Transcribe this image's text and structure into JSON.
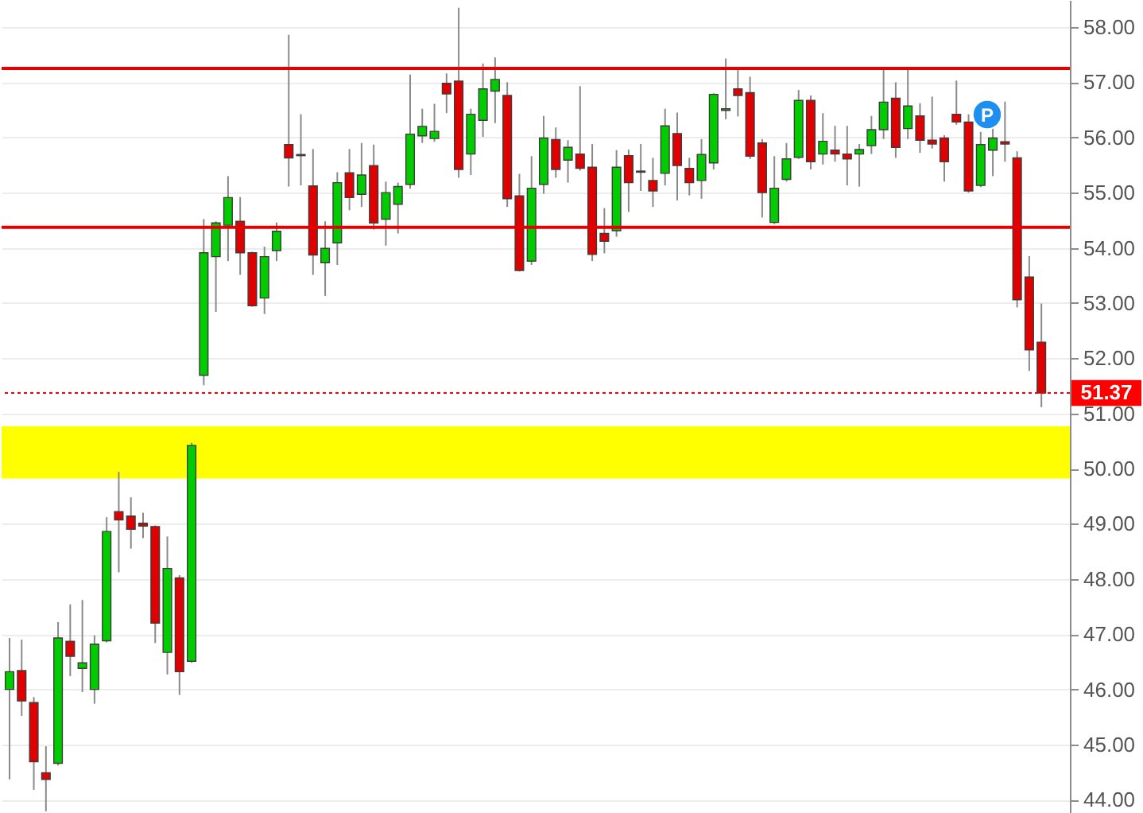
{
  "chart_data": {
    "type": "candlestick",
    "categories": [
      null,
      null,
      null,
      null,
      null,
      null,
      null,
      null,
      null,
      null,
      null,
      null,
      null,
      null,
      null,
      null,
      null,
      null,
      null,
      null,
      null,
      null,
      null,
      null,
      null,
      null,
      null,
      null,
      null,
      null,
      null,
      null,
      null,
      null,
      null,
      null,
      null,
      null,
      null,
      null,
      null,
      null,
      null,
      null,
      null,
      null,
      null,
      null,
      null,
      null,
      null,
      null,
      null,
      null,
      null,
      null,
      null,
      null,
      null,
      null,
      null,
      null,
      null,
      null,
      null,
      null,
      null,
      null,
      null,
      null,
      null,
      null,
      null,
      null,
      null,
      null,
      null,
      null,
      null,
      null,
      null,
      null,
      null,
      null,
      null,
      null
    ],
    "ohlc": [
      [
        46.0,
        46.93,
        44.37,
        46.32
      ],
      [
        46.34,
        46.9,
        45.52,
        45.79
      ],
      [
        45.76,
        45.86,
        44.18,
        44.69
      ],
      [
        44.49,
        44.97,
        43.79,
        44.37
      ],
      [
        44.66,
        47.22,
        44.62,
        46.93
      ],
      [
        46.87,
        47.54,
        46.24,
        46.6
      ],
      [
        46.38,
        47.62,
        45.95,
        46.48
      ],
      [
        46.0,
        46.98,
        45.74,
        46.82
      ],
      [
        46.88,
        49.12,
        46.85,
        48.86
      ],
      [
        49.22,
        49.94,
        48.12,
        49.07
      ],
      [
        49.14,
        49.48,
        48.55,
        48.9
      ],
      [
        49.01,
        49.2,
        48.74,
        48.96
      ],
      [
        48.95,
        48.97,
        46.84,
        47.2
      ],
      [
        46.67,
        48.77,
        46.27,
        48.19
      ],
      [
        48.02,
        48.07,
        45.9,
        46.32
      ],
      [
        46.51,
        50.47,
        46.48,
        50.42
      ],
      [
        51.69,
        54.52,
        51.51,
        53.91
      ],
      [
        53.84,
        54.48,
        52.84,
        54.45
      ],
      [
        54.41,
        55.3,
        53.76,
        54.91
      ],
      [
        54.48,
        54.92,
        53.51,
        53.91
      ],
      [
        53.91,
        53.93,
        52.93,
        52.95
      ],
      [
        53.09,
        54.02,
        52.8,
        53.84
      ],
      [
        53.95,
        54.46,
        53.76,
        54.3
      ],
      [
        55.87,
        57.86,
        55.11,
        55.63
      ],
      [
        55.67,
        56.42,
        55.13,
        55.69
      ],
      [
        55.12,
        55.79,
        53.51,
        53.87
      ],
      [
        53.73,
        54.48,
        53.13,
        53.99
      ],
      [
        54.09,
        55.37,
        53.69,
        55.18
      ],
      [
        55.36,
        55.79,
        54.68,
        54.91
      ],
      [
        54.97,
        55.9,
        54.74,
        55.32
      ],
      [
        55.49,
        55.87,
        54.33,
        54.45
      ],
      [
        54.52,
        55.2,
        54.04,
        55.0
      ],
      [
        54.79,
        55.18,
        54.26,
        55.11
      ],
      [
        55.15,
        57.14,
        55.07,
        56.06
      ],
      [
        56.03,
        56.52,
        55.9,
        56.2
      ],
      [
        55.98,
        56.61,
        55.92,
        56.11
      ],
      [
        56.98,
        57.16,
        56.44,
        56.79
      ],
      [
        57.02,
        58.35,
        55.27,
        55.42
      ],
      [
        55.7,
        56.52,
        55.32,
        56.42
      ],
      [
        56.31,
        57.34,
        56.01,
        56.88
      ],
      [
        56.84,
        57.45,
        56.26,
        57.05
      ],
      [
        56.76,
        57.0,
        54.74,
        54.89
      ],
      [
        54.94,
        55.34,
        53.57,
        53.59
      ],
      [
        53.76,
        55.66,
        53.69,
        55.08
      ],
      [
        55.15,
        56.39,
        54.98,
        55.99
      ],
      [
        55.96,
        56.18,
        55.27,
        55.42
      ],
      [
        55.59,
        55.95,
        55.18,
        55.82
      ],
      [
        55.7,
        56.93,
        55.4,
        55.44
      ],
      [
        55.46,
        55.88,
        53.76,
        53.88
      ],
      [
        54.26,
        54.72,
        53.9,
        54.12
      ],
      [
        54.31,
        55.77,
        54.2,
        55.46
      ],
      [
        55.67,
        55.78,
        54.65,
        55.18
      ],
      [
        55.37,
        55.88,
        55.03,
        55.39
      ],
      [
        55.22,
        55.63,
        54.74,
        55.03
      ],
      [
        55.35,
        56.52,
        55.13,
        56.21
      ],
      [
        56.07,
        56.45,
        54.86,
        55.49
      ],
      [
        55.44,
        55.63,
        54.95,
        55.18
      ],
      [
        55.22,
        55.97,
        54.89,
        55.69
      ],
      [
        55.54,
        56.8,
        55.42,
        56.78
      ],
      [
        56.49,
        57.43,
        56.33,
        56.52
      ],
      [
        56.88,
        57.26,
        56.38,
        56.76
      ],
      [
        56.81,
        57.1,
        55.61,
        55.66
      ],
      [
        55.9,
        55.97,
        54.55,
        55.0
      ],
      [
        54.46,
        55.66,
        54.43,
        55.08
      ],
      [
        55.24,
        55.9,
        55.2,
        55.61
      ],
      [
        55.64,
        56.86,
        55.61,
        56.67
      ],
      [
        56.67,
        56.76,
        55.42,
        55.56
      ],
      [
        55.7,
        56.44,
        55.51,
        55.93
      ],
      [
        55.77,
        56.21,
        55.56,
        55.7
      ],
      [
        55.7,
        56.21,
        55.13,
        55.61
      ],
      [
        55.7,
        55.88,
        55.11,
        55.78
      ],
      [
        55.85,
        56.39,
        55.7,
        56.14
      ],
      [
        56.14,
        57.24,
        55.97,
        56.64
      ],
      [
        56.71,
        57.0,
        55.63,
        55.82
      ],
      [
        56.16,
        57.24,
        55.97,
        56.57
      ],
      [
        56.39,
        56.62,
        55.72,
        55.95
      ],
      [
        55.95,
        56.74,
        55.8,
        55.88
      ],
      [
        55.99,
        56.04,
        55.2,
        55.56
      ],
      [
        56.42,
        57.03,
        56.23,
        56.28
      ],
      [
        56.28,
        56.42,
        55.0,
        55.03
      ],
      [
        55.13,
        56.1,
        55.1,
        55.87
      ],
      [
        55.77,
        56.2,
        55.3,
        55.99
      ],
      [
        55.92,
        56.65,
        55.56,
        55.88
      ],
      [
        55.63,
        55.75,
        52.92,
        53.06
      ],
      [
        53.47,
        53.85,
        51.77,
        52.15
      ],
      [
        52.29,
        52.99,
        51.11,
        51.37
      ]
    ],
    "colors": [
      "#00cc00",
      "#e00000",
      "#e00000",
      "#e00000",
      "#00cc00",
      "#e00000",
      "#00cc00",
      "#00cc00",
      "#00cc00",
      "#e00000",
      "#e00000",
      "#e00000",
      "#e00000",
      "#00cc00",
      "#e00000",
      "#00cc00",
      "#00cc00",
      "#00cc00",
      "#00cc00",
      "#e00000",
      "#e00000",
      "#00cc00",
      "#00cc00",
      "#e00000",
      "#00cc00",
      "#e00000",
      "#00cc00",
      "#00cc00",
      "#e00000",
      "#00cc00",
      "#e00000",
      "#00cc00",
      "#00cc00",
      "#00cc00",
      "#00cc00",
      "#00cc00",
      "#e00000",
      "#e00000",
      "#00cc00",
      "#00cc00",
      "#00cc00",
      "#e00000",
      "#e00000",
      "#00cc00",
      "#00cc00",
      "#e00000",
      "#00cc00",
      "#e00000",
      "#e00000",
      "#e00000",
      "#00cc00",
      "#e00000",
      "#00cc00",
      "#e00000",
      "#00cc00",
      "#e00000",
      "#e00000",
      "#00cc00",
      "#00cc00",
      "#00cc00",
      "#e00000",
      "#e00000",
      "#e00000",
      "#00cc00",
      "#00cc00",
      "#00cc00",
      "#e00000",
      "#00cc00",
      "#e00000",
      "#e00000",
      "#00cc00",
      "#00cc00",
      "#00cc00",
      "#e00000",
      "#00cc00",
      "#e00000",
      "#e00000",
      "#e00000",
      "#e00000",
      "#e00000",
      "#00cc00",
      "#00cc00",
      "#e00000",
      "#e00000",
      "#e00000",
      "#e00000"
    ],
    "ylim": [
      43.76,
      58.49
    ],
    "yticks": [
      {
        "value": 44,
        "label": "44.00"
      },
      {
        "value": 45,
        "label": "45.00"
      },
      {
        "value": 46,
        "label": "46.00"
      },
      {
        "value": 47,
        "label": "47.00"
      },
      {
        "value": 48,
        "label": "48.00"
      },
      {
        "value": 49,
        "label": "49.00"
      },
      {
        "value": 50,
        "label": "50.00"
      },
      {
        "value": 51,
        "label": "51.00"
      },
      {
        "value": 52,
        "label": "52.00"
      },
      {
        "value": 53,
        "label": "53.00"
      },
      {
        "value": 54,
        "label": "54.00"
      },
      {
        "value": 55,
        "label": "55.00"
      },
      {
        "value": 56,
        "label": "56.00"
      },
      {
        "value": 57,
        "label": "57.00"
      },
      {
        "value": 58,
        "label": "58.00"
      }
    ],
    "tick_labels": "y",
    "grid": "y",
    "ref_lines": [
      {
        "axis": "y",
        "value": 57.25,
        "color": "#e60000",
        "line_style": "solid"
      },
      {
        "axis": "y",
        "value": 54.37,
        "color": "#e60000",
        "line_style": "solid"
      },
      {
        "axis": "y",
        "value": 51.37,
        "label": "51.37",
        "color": "#ff0000",
        "line_style": "dotted"
      }
    ],
    "bands": [
      {
        "axis": "y",
        "from": 49.82,
        "to": 50.77,
        "color": "#ffff00"
      }
    ],
    "annotations": [
      "P"
    ]
  }
}
